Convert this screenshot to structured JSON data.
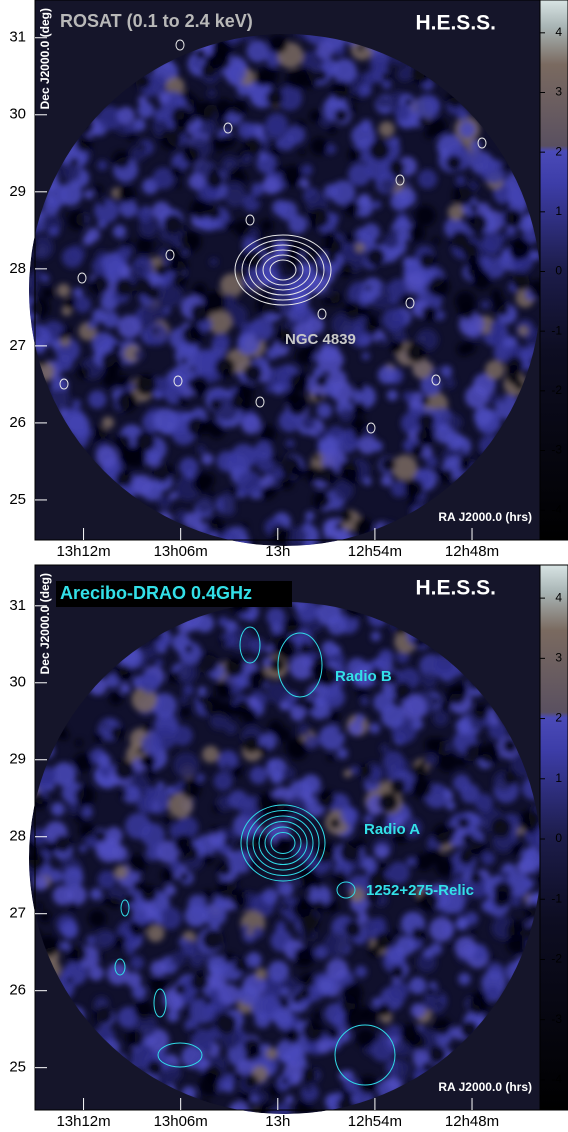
{
  "chart_data": [
    {
      "type": "heatmap",
      "title": "ROSAT (0.1 to 2.4 keV)",
      "logo": "H.E.S.S.",
      "x_label": "RA J2000.0 (hrs)",
      "y_label": "Dec J2000.0 (deg)",
      "xlim": [
        13.25,
        12.73
      ],
      "xticks": [
        {
          "value": 13.2,
          "label": "13h12m"
        },
        {
          "value": 13.1,
          "label": "13h06m"
        },
        {
          "value": 13.0,
          "label": "13h"
        },
        {
          "value": 12.9,
          "label": "12h54m"
        },
        {
          "value": 12.8,
          "label": "12h48m"
        }
      ],
      "ylim": [
        24.48,
        31.49
      ],
      "yticks": [
        25,
        26,
        27,
        28,
        29,
        30,
        31
      ],
      "clim": [
        -4.5,
        4.55
      ],
      "cticks": [
        -4,
        -3,
        -2,
        -1,
        0,
        1,
        2,
        3,
        4
      ],
      "annotations": [
        "NGC 4839"
      ]
    },
    {
      "type": "heatmap",
      "title": "Arecibo-DRAO 0.4GHz",
      "logo": "H.E.S.S.",
      "x_label": "RA J2000.0 (hrs)",
      "y_label": "Dec J2000.0 (deg)",
      "xlim": [
        13.25,
        12.73
      ],
      "xticks": [
        {
          "value": 13.2,
          "label": "13h12m"
        },
        {
          "value": 13.1,
          "label": "13h06m"
        },
        {
          "value": 13.0,
          "label": "13h"
        },
        {
          "value": 12.9,
          "label": "12h54m"
        },
        {
          "value": 12.8,
          "label": "12h48m"
        }
      ],
      "ylim": [
        24.45,
        31.53
      ],
      "yticks": [
        25,
        26,
        27,
        28,
        29,
        30,
        31
      ],
      "clim": [
        -4.5,
        4.55
      ],
      "cticks": [
        -4,
        -3,
        -2,
        -1,
        0,
        1,
        2,
        3,
        4
      ],
      "annotations": [
        "Radio B",
        "Radio A",
        "1252+275-Relic"
      ]
    }
  ]
}
